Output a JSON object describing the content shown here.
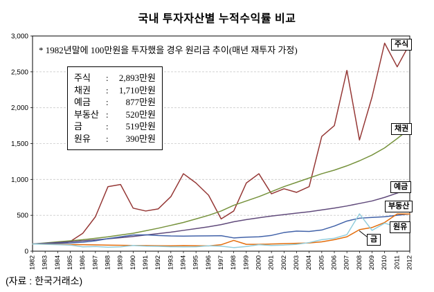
{
  "page": {
    "title": "국내 투자자산별 누적수익률 비교",
    "annotation": "* 1982년말에 100만원을 투자했을 경우 원리금 추이(매년 재투자 가정)",
    "source": "(자료 : 한국거래소)"
  },
  "legend": {
    "separator": ":",
    "entries": [
      {
        "label": "주식",
        "value": "2,893만원"
      },
      {
        "label": "채권",
        "value": "1,710만원"
      },
      {
        "label": "예금",
        "value": "877만원"
      },
      {
        "label": "부동산",
        "value": "520만원"
      },
      {
        "label": "금",
        "value": "519만원"
      },
      {
        "label": "원유",
        "value": "390만원"
      }
    ]
  },
  "chart_data": {
    "type": "line",
    "title": "국내 투자자산별 누적수익률 비교",
    "unit": "만원",
    "x": [
      1982,
      1983,
      1984,
      1985,
      1986,
      1987,
      1988,
      1989,
      1990,
      1991,
      1992,
      1993,
      1994,
      1995,
      1996,
      1997,
      1998,
      1999,
      2000,
      2001,
      2002,
      2003,
      2004,
      2005,
      2006,
      2007,
      2008,
      2009,
      2010,
      2011,
      2012
    ],
    "ylim": [
      0,
      3000
    ],
    "ytick_step": 500,
    "grid": true,
    "legend_position": "right",
    "series": [
      {
        "name": "주식",
        "color": "#953735",
        "final_value": 2893,
        "values": [
          100,
          105,
          115,
          135,
          250,
          480,
          900,
          930,
          600,
          560,
          590,
          760,
          1080,
          950,
          780,
          450,
          560,
          950,
          1080,
          800,
          870,
          820,
          900,
          1600,
          1750,
          2520,
          1550,
          2150,
          2900,
          2570,
          2893
        ]
      },
      {
        "name": "채권",
        "color": "#76923C",
        "final_value": 1710,
        "values": [
          100,
          115,
          130,
          145,
          160,
          180,
          200,
          225,
          250,
          285,
          320,
          360,
          400,
          450,
          500,
          560,
          640,
          700,
          760,
          830,
          900,
          960,
          1020,
          1080,
          1130,
          1190,
          1260,
          1340,
          1440,
          1570,
          1710
        ]
      },
      {
        "name": "예금",
        "color": "#604A7B",
        "final_value": 877,
        "values": [
          100,
          110,
          120,
          132,
          145,
          158,
          172,
          188,
          205,
          225,
          245,
          265,
          290,
          315,
          340,
          370,
          410,
          440,
          465,
          490,
          510,
          530,
          550,
          575,
          600,
          630,
          665,
          700,
          750,
          810,
          877
        ]
      },
      {
        "name": "부동산",
        "color": "#4061A8",
        "final_value": 520,
        "values": [
          100,
          105,
          110,
          115,
          125,
          145,
          175,
          200,
          225,
          228,
          218,
          212,
          210,
          212,
          214,
          216,
          185,
          195,
          200,
          220,
          260,
          280,
          275,
          295,
          350,
          420,
          460,
          470,
          480,
          500,
          520
        ]
      },
      {
        "name": "금",
        "color": "#E36C0A",
        "final_value": 519,
        "values": [
          100,
          98,
          95,
          92,
          90,
          88,
          85,
          82,
          80,
          78,
          76,
          75,
          78,
          76,
          74,
          90,
          150,
          95,
          95,
          100,
          105,
          110,
          115,
          130,
          160,
          200,
          300,
          330,
          400,
          520,
          519
        ]
      },
      {
        "name": "원유",
        "color": "#92CDDC",
        "final_value": 390,
        "values": [
          100,
          95,
          90,
          85,
          60,
          65,
          55,
          60,
          80,
          70,
          68,
          62,
          60,
          62,
          75,
          70,
          50,
          65,
          90,
          80,
          85,
          95,
          120,
          160,
          180,
          230,
          520,
          290,
          390,
          340,
          390
        ]
      }
    ]
  }
}
